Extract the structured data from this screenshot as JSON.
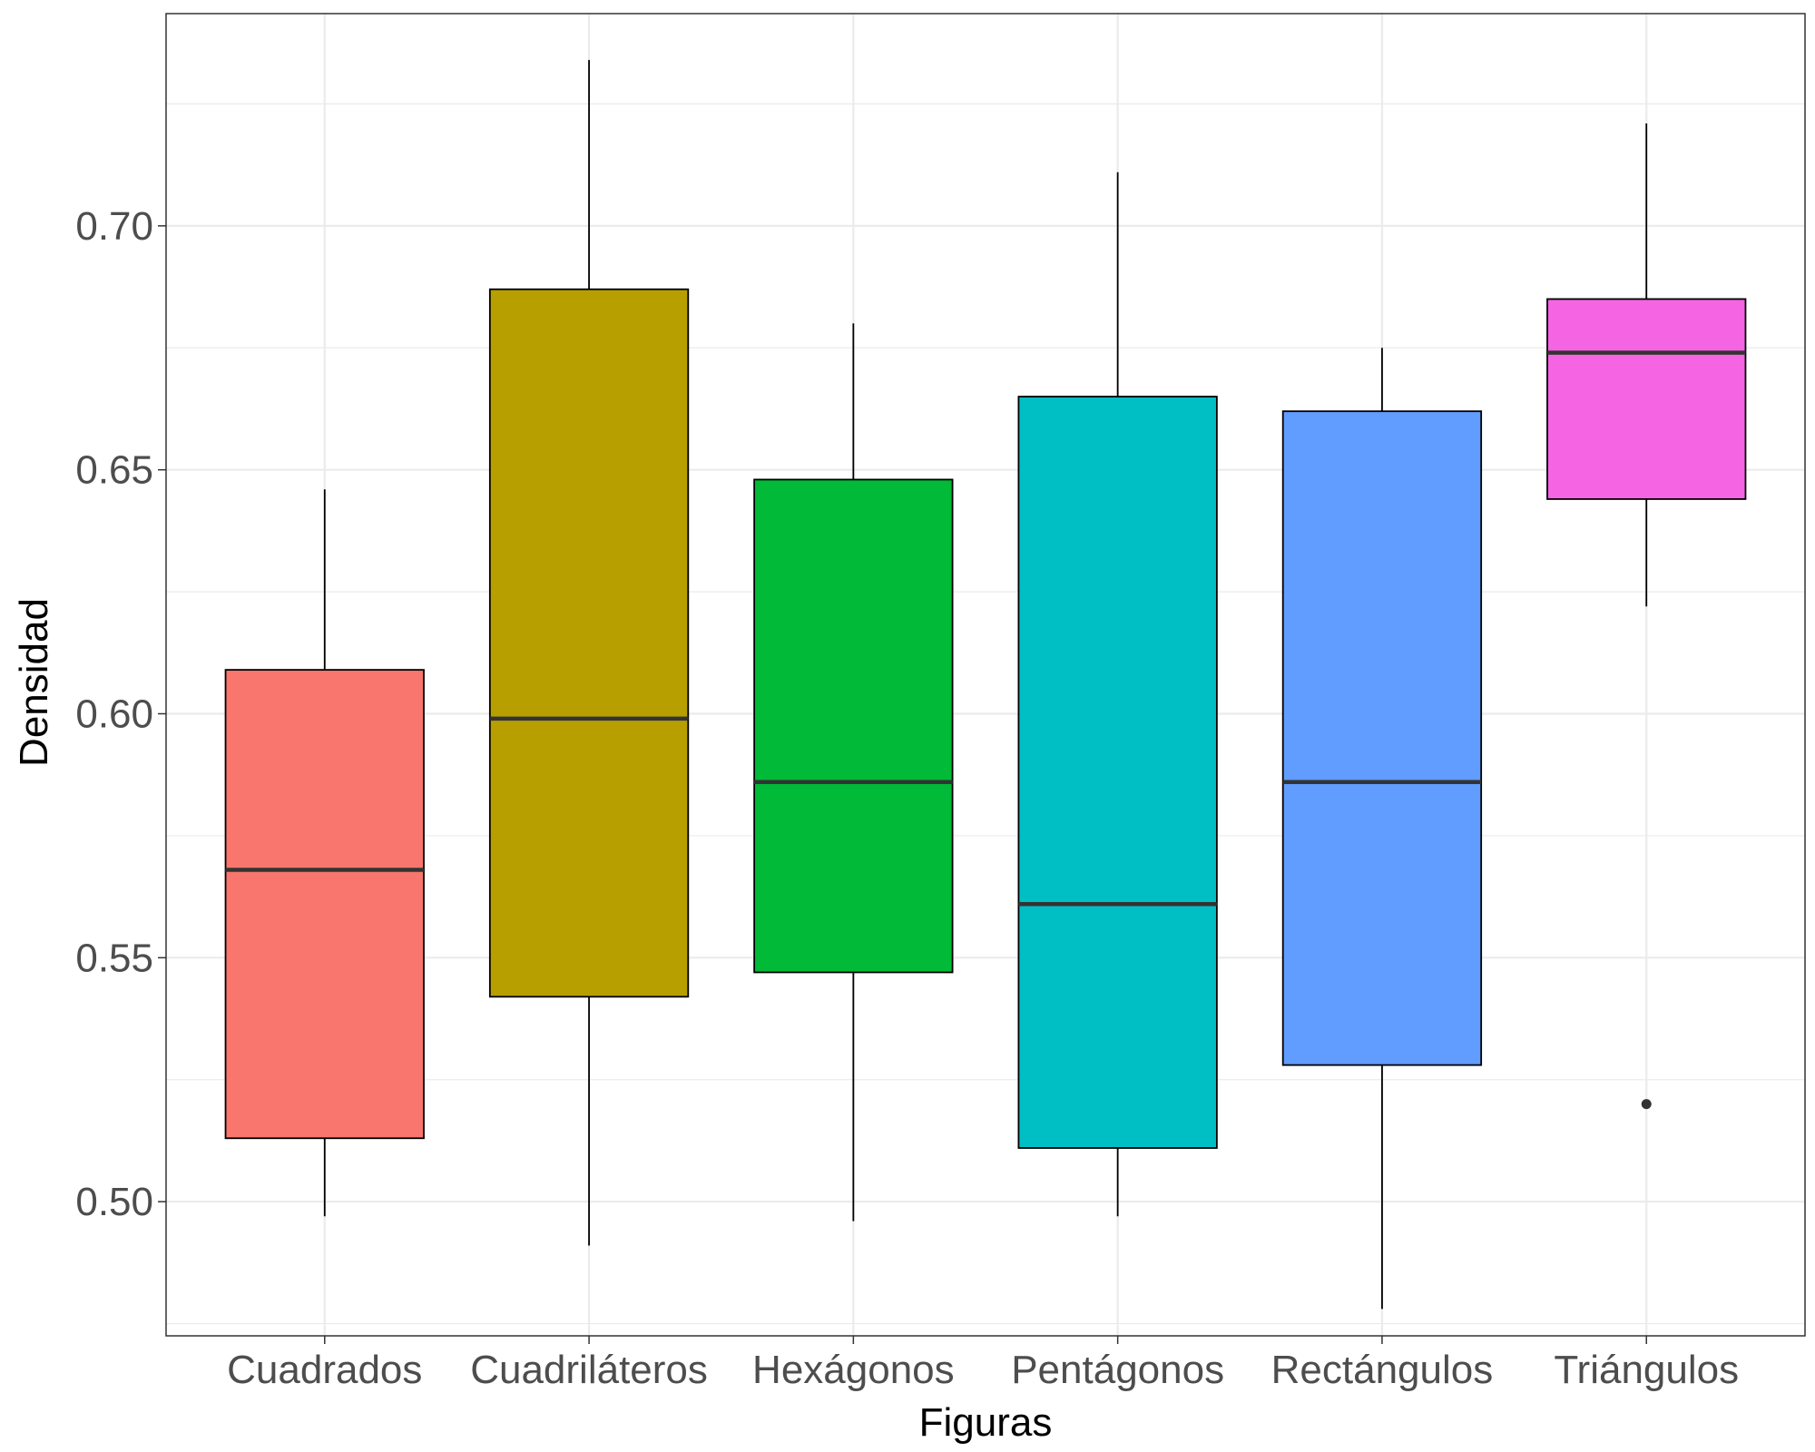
{
  "chart_data": {
    "type": "boxplot",
    "xlabel": "Figuras",
    "ylabel": "Densidad",
    "ylim": [
      0.4725,
      0.7435
    ],
    "yticks": [
      0.5,
      0.55,
      0.6,
      0.65,
      0.7
    ],
    "ytick_labels": [
      "0.50",
      "0.55",
      "0.60",
      "0.65",
      "0.70"
    ],
    "grid": true,
    "legend": "none",
    "categories": [
      "Cuadrados",
      "Cuadriláteros",
      "Hexágonos",
      "Pentágonos",
      "Rectángulos",
      "Triángulos"
    ],
    "boxes": [
      {
        "category": "Cuadrados",
        "whisker_low": 0.497,
        "q1": 0.513,
        "median": 0.568,
        "q3": 0.609,
        "whisker_high": 0.646,
        "outliers": [],
        "color": "#F8766D"
      },
      {
        "category": "Cuadriláteros",
        "whisker_low": 0.491,
        "q1": 0.542,
        "median": 0.599,
        "q3": 0.687,
        "whisker_high": 0.734,
        "outliers": [],
        "color": "#B79F00"
      },
      {
        "category": "Hexágonos",
        "whisker_low": 0.496,
        "q1": 0.547,
        "median": 0.586,
        "q3": 0.648,
        "whisker_high": 0.68,
        "outliers": [],
        "color": "#00BA38"
      },
      {
        "category": "Pentágonos",
        "whisker_low": 0.497,
        "q1": 0.511,
        "median": 0.561,
        "q3": 0.665,
        "whisker_high": 0.711,
        "outliers": [],
        "color": "#00BFC4"
      },
      {
        "category": "Rectángulos",
        "whisker_low": 0.478,
        "q1": 0.528,
        "median": 0.586,
        "q3": 0.662,
        "whisker_high": 0.675,
        "outliers": [],
        "color": "#619CFF"
      },
      {
        "category": "Triángulos",
        "whisker_low": 0.622,
        "q1": 0.644,
        "median": 0.674,
        "q3": 0.685,
        "whisker_high": 0.721,
        "outliers": [
          0.52
        ],
        "color": "#F564E3"
      }
    ]
  }
}
